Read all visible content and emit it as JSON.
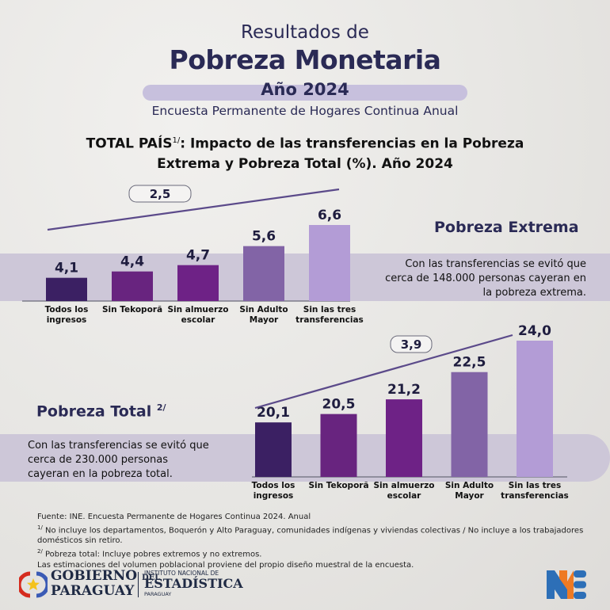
{
  "header": {
    "line1": "Resultados de",
    "line2": "Pobreza Monetaria",
    "year": "Año 2024",
    "subtitle": "Encuesta Permanente de Hogares Continua Anual",
    "chart_heading_prefix": "TOTAL PAÍS",
    "chart_heading_sup": "1/",
    "chart_heading_line1_rest": ": Impacto de las transferencias en la Pobreza",
    "chart_heading_line2": "Extrema y Pobreza Total (%). Año 2024"
  },
  "sections": {
    "extrema": {
      "title": "Pobreza Extrema",
      "note": [
        "Con las transferencias se evitó que",
        "cerca de 148.000 personas cayeran en",
        "la pobreza extrema."
      ]
    },
    "total": {
      "title": "Pobreza Total",
      "title_sup": "2/",
      "note": [
        "Con las transferencias se evitó que",
        "cerca de 230.000 personas",
        "cayeran en la pobreza total."
      ]
    }
  },
  "colors": {
    "bars": [
      "#3b2063",
      "#68247f",
      "#6e2286",
      "#8264a6",
      "#b39cd6"
    ],
    "trend_line": "#5b4a8a",
    "band": "#cdc7d8",
    "title": "#2a2a55"
  },
  "chart_data": [
    {
      "type": "bar",
      "title": "Pobreza Extrema",
      "categories": [
        [
          "Todos los",
          "ingresos"
        ],
        [
          "Sin Tekoporã"
        ],
        [
          "Sin almuerzo",
          "escolar"
        ],
        [
          "Sin Adulto",
          "Mayor"
        ],
        [
          "Sin las tres",
          "transferencias"
        ]
      ],
      "values": [
        4.1,
        4.4,
        4.7,
        5.6,
        6.6
      ],
      "labels": [
        "4,1",
        "4,4",
        "4,7",
        "5,6",
        "6,6"
      ],
      "difference_label": "2,5",
      "ylabel": "%",
      "grid": false
    },
    {
      "type": "bar",
      "title": "Pobreza Total",
      "categories": [
        [
          "Todos los",
          "ingresos"
        ],
        [
          "Sin Tekoporã"
        ],
        [
          "Sin almuerzo",
          "escolar"
        ],
        [
          "Sin Adulto",
          "Mayor"
        ],
        [
          "Sin las tres",
          "transferencias"
        ]
      ],
      "values": [
        20.1,
        20.5,
        21.2,
        22.5,
        24.0
      ],
      "labels": [
        "20,1",
        "20,5",
        "21,2",
        "22,5",
        "24,0"
      ],
      "difference_label": "3,9",
      "ylabel": "%",
      "grid": false
    }
  ],
  "footer": {
    "source": "Fuente: INE. Encuesta Permanente de Hogares Continua 2024. Anual",
    "note1_sup": "1/",
    "note1": " No incluye los departamentos, Boquerón y Alto Paraguay, comunidades indígenas y viviendas colectivas / No incluye a los trabajadores domésticos sin retiro.",
    "note2_sup": "2/",
    "note2": " Pobreza total: Incluye pobres extremos y no extremos.",
    "note3": "Las estimaciones del volumen poblacional proviene del propio diseño muestral de la encuesta."
  },
  "logos": {
    "gov_line1": "GOBIERNO",
    "gov_del": "DEL",
    "gov_line2": "PARAGUAY",
    "ine_line1": "INSTITUTO NACIONAL DE",
    "ine_line2": "ESTADÍSTICA",
    "ine_line3": "PARAGUAY"
  }
}
